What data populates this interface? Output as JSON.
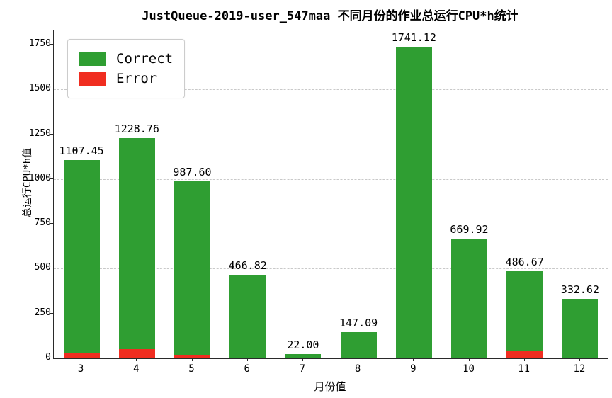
{
  "chart_data": {
    "type": "bar",
    "title": "JustQueue-2019-user_547maa 不同月份的作业总运行CPU*h统计",
    "xlabel": "月份值",
    "ylabel": "总运行CPU*h值",
    "categories": [
      "3",
      "4",
      "5",
      "6",
      "7",
      "8",
      "9",
      "10",
      "11",
      "12"
    ],
    "totals": [
      1107.45,
      1228.76,
      987.6,
      466.82,
      22.0,
      147.09,
      1741.12,
      669.92,
      486.67,
      332.62
    ],
    "bar_labels": [
      "1107.45",
      "1228.76",
      "987.60",
      "466.82",
      "22.00",
      "147.09",
      "1741.12",
      "669.92",
      "486.67",
      "332.62"
    ],
    "series": [
      {
        "name": "Correct",
        "color": "#2f9e32",
        "values": [
          1077.45,
          1178.76,
          967.6,
          466.82,
          22.0,
          147.09,
          1741.12,
          669.92,
          441.67,
          332.62
        ]
      },
      {
        "name": "Error",
        "color": "#f02d20",
        "values": [
          30,
          50,
          20,
          0,
          0,
          0,
          0,
          0,
          45,
          0
        ]
      }
    ],
    "yticks": [
      0,
      250,
      500,
      750,
      1000,
      1250,
      1500,
      1750
    ],
    "ylim": [
      0,
      1830
    ],
    "grid": "dashed-horizontal",
    "legend_position": "upper-left"
  }
}
